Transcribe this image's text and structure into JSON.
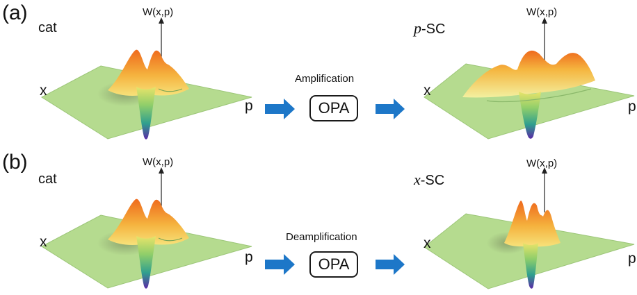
{
  "colors": {
    "plane": "#b3da8e",
    "arrow": "#1d77c8",
    "surface_top": "#f0741f",
    "surface_mid": "#f6cf55",
    "surface_dip": "#2f9f8e",
    "surface_bottom": "#5a2aa6"
  },
  "rows": [
    {
      "panel_label": "(a)",
      "input_state": "cat",
      "input_axes": {
        "vertical": "W(x,p)",
        "x": "x",
        "p": "p"
      },
      "operation": {
        "label": "Amplification",
        "box": "OPA"
      },
      "output_state": {
        "symbol": "p",
        "suffix": "-SC"
      },
      "output_axes": {
        "vertical": "W(x,p)",
        "x": "x",
        "p": "p"
      }
    },
    {
      "panel_label": "(b)",
      "input_state": "cat",
      "input_axes": {
        "vertical": "W(x,p)",
        "x": "x",
        "p": "p"
      },
      "operation": {
        "label": "Deamplification",
        "box": "OPA"
      },
      "output_state": {
        "symbol": "x",
        "suffix": "-SC"
      },
      "output_axes": {
        "vertical": "W(x,p)",
        "x": "x",
        "p": "p"
      }
    }
  ]
}
